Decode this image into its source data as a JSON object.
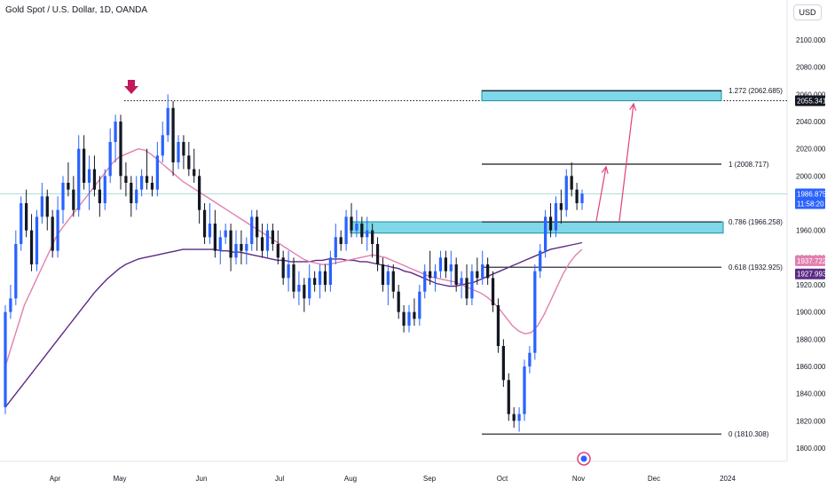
{
  "header": {
    "title": "Gold Spot / U.S. Dollar, 1D, OANDA",
    "currency": "USD"
  },
  "colors": {
    "up": "#2962ff",
    "down": "#131722",
    "ma_fast": "#e27fb0",
    "ma_slow": "#5b2a86",
    "zone_fill": "#7fd8e8",
    "zone_stroke": "#1a8fa8",
    "arrow": "#e0417a",
    "marker": "#c2185b",
    "fib": "#131722",
    "crosshair": "#26a69a"
  },
  "chart_data": {
    "type": "candlestick",
    "title": "Gold Spot / U.S. Dollar, 1D, OANDA",
    "ylim": [
      1795,
      2125
    ],
    "y_ticks": [
      "1800.000",
      "1820.000",
      "1840.000",
      "1860.000",
      "1880.000",
      "1900.000",
      "1920.000",
      "1940.000",
      "1960.000",
      "2000.000",
      "2020.000",
      "2040.000",
      "2060.000",
      "2080.000",
      "2100.000"
    ],
    "x_ticks": [
      "Apr",
      "May",
      "Jun",
      "Jul",
      "Aug",
      "Sep",
      "Oct",
      "Nov",
      "Dec",
      "2024"
    ],
    "ohlc": [
      [
        1830,
        1905,
        1825,
        1900
      ],
      [
        1900,
        1920,
        1895,
        1910
      ],
      [
        1910,
        1960,
        1905,
        1950
      ],
      [
        1950,
        1985,
        1945,
        1980
      ],
      [
        1980,
        1990,
        1955,
        1960
      ],
      [
        1960,
        1972,
        1930,
        1935
      ],
      [
        1935,
        1975,
        1930,
        1970
      ],
      [
        1970,
        1995,
        1965,
        1985
      ],
      [
        1985,
        1990,
        1960,
        1970
      ],
      [
        1970,
        1975,
        1940,
        1945
      ],
      [
        1945,
        1985,
        1940,
        1975
      ],
      [
        1975,
        2000,
        1965,
        1995
      ],
      [
        1995,
        2010,
        1985,
        1990
      ],
      [
        1990,
        2000,
        1970,
        1975
      ],
      [
        1975,
        2030,
        1970,
        2020
      ],
      [
        2020,
        2030,
        1990,
        1995
      ],
      [
        1995,
        2015,
        1975,
        2005
      ],
      [
        2005,
        2015,
        1985,
        1990
      ],
      [
        1990,
        2000,
        1970,
        1980
      ],
      [
        1980,
        2005,
        1975,
        2000
      ],
      [
        2000,
        2035,
        1995,
        2025
      ],
      [
        2025,
        2045,
        2010,
        2040
      ],
      [
        2040,
        2045,
        1990,
        2000
      ],
      [
        2000,
        2010,
        1985,
        1995
      ],
      [
        1995,
        2000,
        1970,
        1980
      ],
      [
        1980,
        2000,
        1975,
        1990
      ],
      [
        1990,
        2005,
        1985,
        2000
      ],
      [
        2000,
        2020,
        1990,
        1995
      ],
      [
        1995,
        2000,
        1985,
        1990
      ],
      [
        1990,
        2025,
        1985,
        2015
      ],
      [
        2015,
        2040,
        2010,
        2030
      ],
      [
        2030,
        2060,
        2025,
        2050
      ],
      [
        2050,
        2055,
        2000,
        2010
      ],
      [
        2010,
        2030,
        2005,
        2025
      ],
      [
        2025,
        2030,
        2005,
        2015
      ],
      [
        2015,
        2025,
        2000,
        2005
      ],
      [
        2005,
        2020,
        1995,
        2000
      ],
      [
        2000,
        2005,
        1965,
        1975
      ],
      [
        1975,
        1980,
        1950,
        1955
      ],
      [
        1955,
        1980,
        1950,
        1965
      ],
      [
        1965,
        1975,
        1940,
        1945
      ],
      [
        1945,
        1960,
        1935,
        1955
      ],
      [
        1955,
        1965,
        1950,
        1960
      ],
      [
        1960,
        1965,
        1930,
        1940
      ],
      [
        1940,
        1960,
        1935,
        1950
      ],
      [
        1950,
        1960,
        1935,
        1945
      ],
      [
        1945,
        1955,
        1935,
        1950
      ],
      [
        1950,
        1975,
        1945,
        1970
      ],
      [
        1970,
        1975,
        1945,
        1955
      ],
      [
        1955,
        1965,
        1940,
        1945
      ],
      [
        1945,
        1965,
        1940,
        1960
      ],
      [
        1960,
        1965,
        1945,
        1950
      ],
      [
        1950,
        1960,
        1935,
        1940
      ],
      [
        1940,
        1945,
        1920,
        1925
      ],
      [
        1925,
        1945,
        1915,
        1935
      ],
      [
        1935,
        1940,
        1910,
        1915
      ],
      [
        1915,
        1930,
        1905,
        1920
      ],
      [
        1920,
        1925,
        1900,
        1910
      ],
      [
        1910,
        1935,
        1905,
        1925
      ],
      [
        1925,
        1930,
        1915,
        1920
      ],
      [
        1920,
        1935,
        1910,
        1930
      ],
      [
        1930,
        1935,
        1915,
        1920
      ],
      [
        1920,
        1945,
        1915,
        1940
      ],
      [
        1940,
        1965,
        1935,
        1955
      ],
      [
        1955,
        1960,
        1945,
        1950
      ],
      [
        1950,
        1975,
        1945,
        1970
      ],
      [
        1970,
        1980,
        1955,
        1960
      ],
      [
        1960,
        1975,
        1955,
        1965
      ],
      [
        1965,
        1970,
        1950,
        1955
      ],
      [
        1955,
        1970,
        1945,
        1960
      ],
      [
        1960,
        1965,
        1940,
        1950
      ],
      [
        1950,
        1955,
        1930,
        1935
      ],
      [
        1935,
        1940,
        1915,
        1920
      ],
      [
        1920,
        1935,
        1905,
        1930
      ],
      [
        1930,
        1935,
        1910,
        1915
      ],
      [
        1915,
        1920,
        1895,
        1900
      ],
      [
        1900,
        1905,
        1885,
        1890
      ],
      [
        1890,
        1905,
        1885,
        1900
      ],
      [
        1900,
        1910,
        1890,
        1895
      ],
      [
        1895,
        1920,
        1890,
        1915
      ],
      [
        1915,
        1935,
        1910,
        1930
      ],
      [
        1930,
        1945,
        1920,
        1925
      ],
      [
        1925,
        1935,
        1915,
        1930
      ],
      [
        1930,
        1945,
        1925,
        1940
      ],
      [
        1940,
        1945,
        1925,
        1930
      ],
      [
        1930,
        1945,
        1920,
        1935
      ],
      [
        1935,
        1940,
        1915,
        1920
      ],
      [
        1920,
        1930,
        1910,
        1925
      ],
      [
        1925,
        1935,
        1905,
        1910
      ],
      [
        1910,
        1935,
        1905,
        1930
      ],
      [
        1930,
        1940,
        1920,
        1925
      ],
      [
        1925,
        1945,
        1920,
        1935
      ],
      [
        1935,
        1940,
        1920,
        1925
      ],
      [
        1925,
        1930,
        1900,
        1905
      ],
      [
        1905,
        1910,
        1870,
        1875
      ],
      [
        1875,
        1880,
        1845,
        1850
      ],
      [
        1850,
        1855,
        1820,
        1825
      ],
      [
        1825,
        1830,
        1815,
        1820
      ],
      [
        1820,
        1830,
        1812,
        1825
      ],
      [
        1825,
        1865,
        1820,
        1860
      ],
      [
        1860,
        1875,
        1855,
        1870
      ],
      [
        1870,
        1935,
        1865,
        1930
      ],
      [
        1930,
        1950,
        1925,
        1945
      ],
      [
        1945,
        1975,
        1940,
        1970
      ],
      [
        1970,
        1980,
        1955,
        1960
      ],
      [
        1960,
        1985,
        1955,
        1980
      ],
      [
        1980,
        1990,
        1965,
        1975
      ],
      [
        1975,
        2005,
        1970,
        2000
      ],
      [
        2000,
        2010,
        1985,
        1990
      ],
      [
        1990,
        1995,
        1975,
        1980
      ],
      [
        1980,
        1990,
        1975,
        1987
      ]
    ],
    "ma_fast": [
      1860,
      1875,
      1890,
      1905,
      1915,
      1925,
      1935,
      1945,
      1955,
      1962,
      1968,
      1974,
      1980,
      1986,
      1992,
      1998,
      2004,
      2010,
      2014,
      2016,
      2018,
      2020,
      2019,
      2016,
      2012,
      2008,
      2004,
      2000,
      1996,
      1993,
      1990,
      1987,
      1984,
      1981,
      1978,
      1975,
      1972,
      1969,
      1966,
      1963,
      1960,
      1957,
      1954,
      1951,
      1948,
      1945,
      1942,
      1939,
      1937,
      1936,
      1935,
      1935,
      1936,
      1937,
      1938,
      1939,
      1940,
      1941,
      1942,
      1941,
      1940,
      1938,
      1936,
      1934,
      1932,
      1930,
      1928,
      1926,
      1925,
      1924,
      1923,
      1922,
      1920,
      1918,
      1916,
      1914,
      1911,
      1907,
      1902,
      1896,
      1890,
      1886,
      1884,
      1885,
      1890,
      1898,
      1908,
      1918,
      1928,
      1936,
      1942,
      1946
    ],
    "ma_slow": [
      1830,
      1836,
      1842,
      1848,
      1854,
      1860,
      1866,
      1872,
      1878,
      1884,
      1890,
      1896,
      1902,
      1908,
      1914,
      1919,
      1924,
      1928,
      1932,
      1935,
      1937,
      1939,
      1940,
      1941,
      1942,
      1943,
      1944,
      1945,
      1946,
      1946,
      1946,
      1946,
      1946,
      1946,
      1945,
      1945,
      1944,
      1944,
      1943,
      1942,
      1941,
      1940,
      1939,
      1938,
      1938,
      1937,
      1937,
      1937,
      1937,
      1938,
      1938,
      1939,
      1939,
      1939,
      1938,
      1938,
      1937,
      1937,
      1936,
      1935,
      1934,
      1933,
      1932,
      1930,
      1929,
      1927,
      1925,
      1923,
      1921,
      1920,
      1919,
      1919,
      1920,
      1921,
      1922,
      1924,
      1926,
      1928,
      1930,
      1932,
      1934,
      1936,
      1938,
      1940,
      1942,
      1944,
      1946,
      1947,
      1948,
      1949,
      1950,
      1951
    ],
    "fib_levels": [
      {
        "label": "1.272 (2062.685)",
        "value": 2062.685
      },
      {
        "label": "1 (2008.717)",
        "value": 2008.717
      },
      {
        "label": "0.786 (1966.258)",
        "value": 1966.258
      },
      {
        "label": "0.618 (1932.925)",
        "value": 1932.925
      },
      {
        "label": "0 (1810.308)",
        "value": 1810.308
      }
    ],
    "zones": [
      {
        "from": 2055.3,
        "to": 2062.7
      },
      {
        "from": 1958,
        "to": 1966.3
      }
    ],
    "dotted_level": 2055.341,
    "price_tags": [
      {
        "text": "2055.341",
        "value": 2055.341,
        "bg": "#131722",
        "fg": "#ffffff"
      },
      {
        "text": "1986.875",
        "value": 1986.875,
        "bg": "#2962ff",
        "fg": "#ffffff"
      },
      {
        "text": "11:58:20",
        "value": 1986.875,
        "bg": "#2962ff",
        "fg": "#ffffff",
        "sub": true
      },
      {
        "text": "1937.722",
        "value": 1937.722,
        "bg": "#e27fb0",
        "fg": "#ffffff"
      },
      {
        "text": "1927.993",
        "value": 1927.993,
        "bg": "#5b2a86",
        "fg": "#ffffff"
      }
    ],
    "current_price": 1986.875
  }
}
